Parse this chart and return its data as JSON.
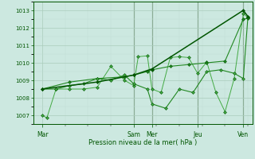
{
  "xlabel": "Pression niveau de la mer( hPa )",
  "bg_color": "#cce8e0",
  "grid_color_major": "#aaccbb",
  "grid_color_minor": "#c0ddd5",
  "line_dark": "#005500",
  "line_mid": "#228822",
  "line_light": "#44aa44",
  "ylim": [
    1006.5,
    1013.5
  ],
  "yticks": [
    1007,
    1008,
    1009,
    1010,
    1011,
    1012,
    1013
  ],
  "xlim": [
    0,
    192
  ],
  "day_labels": [
    "Mar",
    "Sam",
    "Mer",
    "Jeu",
    "Ven"
  ],
  "day_positions": [
    8,
    88,
    104,
    144,
    184
  ],
  "vline_positions": [
    88,
    104,
    144,
    184
  ],
  "series1_x": [
    8,
    12,
    20,
    32,
    44,
    56,
    68,
    80,
    88,
    92,
    100,
    104,
    112,
    120,
    128,
    136,
    144,
    152,
    160,
    168,
    176,
    184,
    188
  ],
  "series1_y": [
    1007.0,
    1006.85,
    1008.5,
    1008.5,
    1008.5,
    1008.6,
    1009.8,
    1009.0,
    1008.7,
    1010.35,
    1010.4,
    1008.5,
    1008.3,
    1010.3,
    1010.35,
    1010.3,
    1009.4,
    1010.05,
    1008.3,
    1007.2,
    1009.1,
    1012.8,
    1012.6
  ],
  "series2_x": [
    8,
    20,
    32,
    44,
    56,
    68,
    80,
    88,
    100,
    104,
    116,
    128,
    140,
    152,
    164,
    176,
    184,
    188
  ],
  "series2_y": [
    1008.5,
    1008.5,
    1008.7,
    1008.8,
    1009.1,
    1009.0,
    1009.3,
    1008.8,
    1008.5,
    1007.65,
    1007.4,
    1008.5,
    1008.3,
    1009.5,
    1009.6,
    1009.4,
    1009.1,
    1012.6
  ],
  "series3_x": [
    8,
    32,
    56,
    80,
    88,
    100,
    104,
    120,
    136,
    152,
    168,
    184,
    188
  ],
  "series3_y": [
    1008.5,
    1008.9,
    1009.1,
    1009.2,
    1009.3,
    1009.5,
    1009.6,
    1009.8,
    1009.9,
    1010.0,
    1010.1,
    1012.5,
    1012.55
  ],
  "series4_x": [
    8,
    56,
    88,
    104,
    184,
    188
  ],
  "series4_y": [
    1008.5,
    1008.9,
    1009.3,
    1009.65,
    1013.0,
    1012.65
  ]
}
